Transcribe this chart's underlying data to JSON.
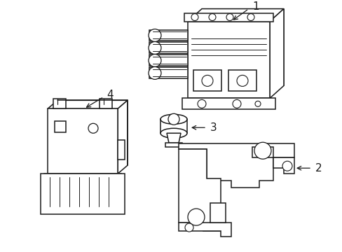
{
  "bg_color": "#ffffff",
  "line_color": "#1a1a1a",
  "lw": 1.1,
  "fig_width": 4.89,
  "fig_height": 3.6,
  "dpi": 100
}
